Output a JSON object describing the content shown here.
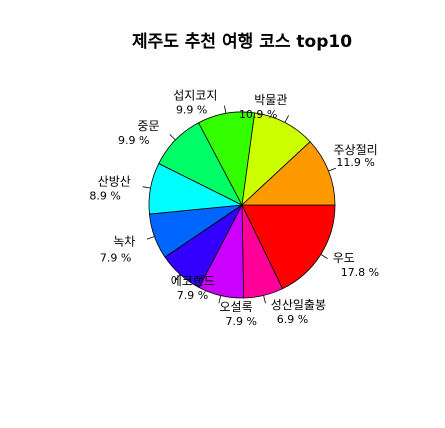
{
  "chart_data": {
    "type": "pie",
    "title": "제주도 추천 여행 코스 top10",
    "slices": [
      {
        "label": "우도",
        "value": 17.8,
        "pct_text": "17.8 %",
        "color": "#FF0000"
      },
      {
        "label": "성산일출봉",
        "value": 6.9,
        "pct_text": "6.9 %",
        "color": "#FF0099"
      },
      {
        "label": "오설록",
        "value": 7.9,
        "pct_text": "7.9 %",
        "color": "#CC00FF"
      },
      {
        "label": "에코랜드",
        "value": 7.9,
        "pct_text": "7.9 %",
        "color": "#3300FF"
      },
      {
        "label": "녹차",
        "value": 7.9,
        "pct_text": "7.9 %",
        "color": "#0066FF"
      },
      {
        "label": "산방산",
        "value": 8.9,
        "pct_text": "8.9 %",
        "color": "#00FFFF"
      },
      {
        "label": "중문",
        "value": 9.9,
        "pct_text": "9.9 %",
        "color": "#00FF66"
      },
      {
        "label": "섭지코지",
        "value": 9.9,
        "pct_text": "9.9 %",
        "color": "#33FF00"
      },
      {
        "label": "박물관",
        "value": 10.9,
        "pct_text": "10.9 %",
        "color": "#CCFF00"
      },
      {
        "label": "주상절리",
        "value": 11.9,
        "pct_text": "11.9 %",
        "color": "#FF9900"
      }
    ]
  }
}
